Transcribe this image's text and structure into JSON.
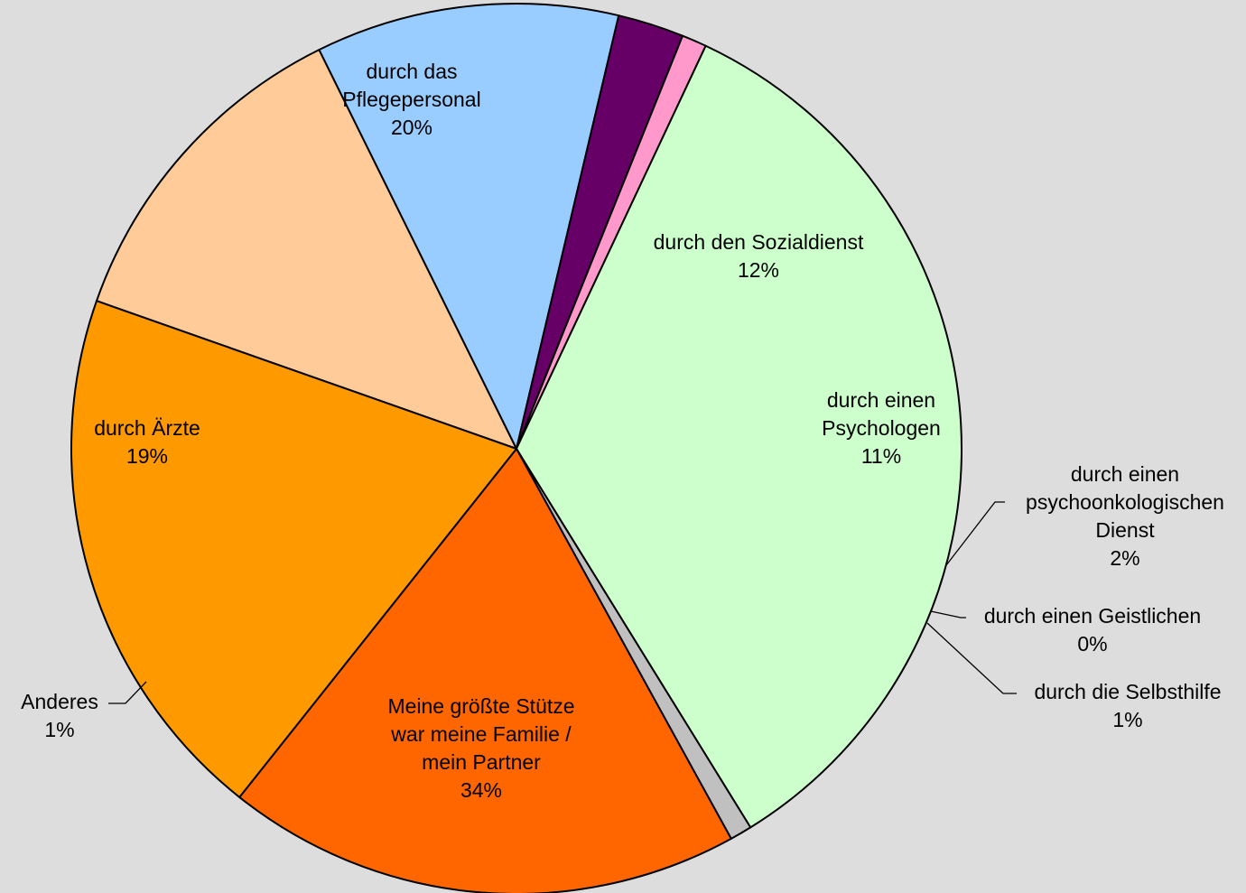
{
  "chart_data": {
    "type": "pie",
    "title": "",
    "slices": [
      {
        "label": "durch den Sozialdienst",
        "pct_label": "12%",
        "value": 12.3,
        "color": "#FFCC99"
      },
      {
        "label": "durch einen Psychologen",
        "pct_label": "11%",
        "value": 11.0,
        "color": "#99CCFF"
      },
      {
        "label": "durch einen psychoonkologischen Dienst",
        "pct_label": "2%",
        "value": 2.4,
        "color": "#660066"
      },
      {
        "label": "durch einen Geistlichen",
        "pct_label": "0%",
        "value": 0.0,
        "color": "#000000"
      },
      {
        "label": "durch die Selbsthilfe",
        "pct_label": "1%",
        "value": 0.9,
        "color": "#FF99CC"
      },
      {
        "label": "Meine größte Stütze war meine Familie / mein Partner",
        "pct_label": "34%",
        "value": 34.2,
        "color": "#CCFFCC"
      },
      {
        "label": "Anderes",
        "pct_label": "1%",
        "value": 0.8,
        "color": "#C0C0C0"
      },
      {
        "label": "durch Ärzte",
        "pct_label": "19%",
        "value": 18.7,
        "color": "#FF6600"
      },
      {
        "label": "durch das Pflegepersonal",
        "pct_label": "20%",
        "value": 19.7,
        "color": "#FF9900"
      }
    ],
    "legend": "none",
    "data_labels": "category name and percentage"
  }
}
